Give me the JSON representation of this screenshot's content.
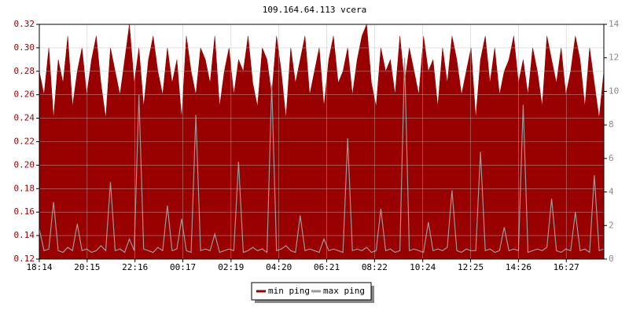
{
  "chart_data": {
    "type": "area-line",
    "title": "109.164.64.113 vcera",
    "x": [
      0,
      12,
      24,
      36,
      48,
      60,
      72,
      84,
      96,
      108,
      120,
      132,
      144,
      156,
      168,
      180,
      192,
      204,
      216,
      228,
      240,
      252,
      264,
      276,
      288,
      300,
      312,
      324,
      336,
      348,
      360,
      372,
      384,
      396,
      408,
      420,
      432,
      444,
      456,
      468,
      480,
      492,
      504,
      516,
      528,
      540,
      552,
      564,
      576,
      588,
      600,
      612,
      624,
      636,
      648,
      660,
      672,
      684,
      696,
      708,
      720,
      732,
      744,
      756,
      768,
      780,
      792,
      804,
      816,
      828,
      840,
      852,
      864,
      876,
      888,
      900,
      912,
      924,
      936,
      948,
      960,
      972,
      984,
      996,
      1008,
      1020,
      1032,
      1044,
      1056,
      1068,
      1080,
      1092,
      1104,
      1116,
      1128,
      1140,
      1152,
      1164,
      1176,
      1188,
      1200,
      1212,
      1224,
      1236,
      1248,
      1260,
      1272,
      1284,
      1296,
      1308,
      1320,
      1332,
      1344,
      1356,
      1368,
      1380,
      1392,
      1404,
      1416,
      1428
    ],
    "series": [
      {
        "name": "min ping",
        "color": "#990000",
        "axis": "y",
        "values": [
          0.28,
          0.26,
          0.3,
          0.24,
          0.29,
          0.27,
          0.31,
          0.25,
          0.28,
          0.3,
          0.26,
          0.29,
          0.31,
          0.27,
          0.24,
          0.3,
          0.28,
          0.26,
          0.29,
          0.32,
          0.27,
          0.3,
          0.25,
          0.29,
          0.31,
          0.28,
          0.26,
          0.3,
          0.27,
          0.29,
          0.24,
          0.31,
          0.28,
          0.26,
          0.3,
          0.29,
          0.27,
          0.31,
          0.25,
          0.28,
          0.3,
          0.26,
          0.29,
          0.28,
          0.31,
          0.27,
          0.25,
          0.3,
          0.29,
          0.26,
          0.31,
          0.28,
          0.24,
          0.3,
          0.27,
          0.29,
          0.31,
          0.26,
          0.28,
          0.3,
          0.25,
          0.29,
          0.31,
          0.27,
          0.28,
          0.3,
          0.26,
          0.29,
          0.31,
          0.32,
          0.27,
          0.25,
          0.3,
          0.28,
          0.29,
          0.26,
          0.31,
          0.27,
          0.3,
          0.28,
          0.26,
          0.31,
          0.28,
          0.29,
          0.25,
          0.3,
          0.27,
          0.31,
          0.29,
          0.26,
          0.28,
          0.3,
          0.24,
          0.29,
          0.31,
          0.27,
          0.3,
          0.26,
          0.28,
          0.29,
          0.31,
          0.27,
          0.29,
          0.26,
          0.3,
          0.28,
          0.25,
          0.31,
          0.29,
          0.27,
          0.3,
          0.26,
          0.28,
          0.31,
          0.29,
          0.25,
          0.3,
          0.27,
          0.24,
          0.28
        ]
      },
      {
        "name": "max ping",
        "color": "#999999",
        "axis": "y2",
        "values": [
          1.8,
          0.5,
          0.6,
          3.4,
          0.5,
          0.4,
          0.7,
          0.5,
          2.1,
          0.5,
          0.6,
          0.4,
          0.5,
          0.8,
          0.5,
          4.6,
          0.5,
          0.6,
          0.4,
          1.2,
          0.5,
          9.8,
          0.6,
          0.5,
          0.4,
          0.7,
          0.5,
          3.2,
          0.5,
          0.6,
          2.4,
          0.5,
          0.4,
          8.6,
          0.5,
          0.6,
          0.5,
          1.5,
          0.4,
          0.5,
          0.6,
          0.5,
          5.8,
          0.4,
          0.5,
          0.7,
          0.5,
          0.6,
          0.4,
          10.4,
          0.5,
          0.6,
          0.8,
          0.5,
          0.4,
          2.6,
          0.5,
          0.6,
          0.5,
          0.4,
          1.2,
          0.5,
          0.6,
          0.5,
          0.4,
          7.2,
          0.5,
          0.6,
          0.5,
          0.7,
          0.4,
          0.5,
          3.0,
          0.5,
          0.6,
          0.4,
          0.5,
          12.0,
          0.5,
          0.6,
          0.5,
          0.4,
          2.2,
          0.5,
          0.6,
          0.5,
          0.7,
          4.1,
          0.5,
          0.4,
          0.6,
          0.5,
          0.5,
          6.4,
          0.5,
          0.6,
          0.4,
          0.5,
          1.9,
          0.5,
          0.6,
          0.5,
          9.2,
          0.4,
          0.5,
          0.6,
          0.5,
          0.7,
          3.6,
          0.5,
          0.4,
          0.6,
          0.5,
          2.8,
          0.5,
          0.6,
          0.4,
          5.0,
          0.5,
          0.6
        ]
      }
    ],
    "xlim": [
      0,
      1428
    ],
    "xticks": [
      {
        "value": 0,
        "label": "18:14"
      },
      {
        "value": 121,
        "label": "20:15"
      },
      {
        "value": 242,
        "label": "22:16"
      },
      {
        "value": 363,
        "label": "00:17"
      },
      {
        "value": 485,
        "label": "02:19"
      },
      {
        "value": 606,
        "label": "04:20"
      },
      {
        "value": 727,
        "label": "06:21"
      },
      {
        "value": 848,
        "label": "08:22"
      },
      {
        "value": 970,
        "label": "10:24"
      },
      {
        "value": 1091,
        "label": "12:25"
      },
      {
        "value": 1212,
        "label": "14:26"
      },
      {
        "value": 1333,
        "label": "16:27"
      }
    ],
    "ylim": [
      0.12,
      0.32
    ],
    "yticks": [
      0.12,
      0.14,
      0.16,
      0.18,
      {
        "value": 0.2,
        "label": "0.20"
      },
      0.22,
      0.24,
      0.26,
      0.28,
      {
        "value": 0.3,
        "label": "0.30"
      },
      0.32
    ],
    "y2lim": [
      0,
      14
    ],
    "y2ticks": [
      0,
      2,
      4,
      6,
      8,
      10,
      12,
      14
    ],
    "grid": true
  }
}
